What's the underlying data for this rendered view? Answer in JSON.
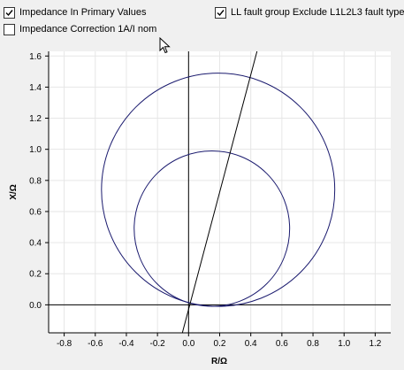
{
  "options": {
    "primary_values": {
      "label": "Impedance In Primary Values",
      "checked": true
    },
    "ll_fault_group": {
      "label": "LL fault group Exclude L1L2L3 fault type",
      "checked": true
    },
    "impedance_correction": {
      "label": "Impedance Correction 1A/I nom",
      "checked": false
    }
  },
  "icons": {
    "cursor": "mouse-pointer-icon"
  },
  "colors": {
    "curve": "#1a1a6e",
    "line": "#000000",
    "grid": "#e6e6e6",
    "plot_bg": "#ffffff",
    "window_bg": "#f0f0f0"
  },
  "chart_data": {
    "type": "line",
    "xlabel": "R/Ω",
    "ylabel": "X/Ω",
    "xlim": [
      -0.9,
      1.3
    ],
    "ylim": [
      -0.18,
      1.63
    ],
    "x_ticks": [
      -0.8,
      -0.6,
      -0.4,
      -0.2,
      0.0,
      0.2,
      0.4,
      0.6,
      0.8,
      1.0,
      1.2
    ],
    "y_ticks": [
      0.0,
      0.2,
      0.4,
      0.6,
      0.8,
      1.0,
      1.2,
      1.4,
      1.6
    ],
    "x_tick_labels": [
      "-0.8",
      "-0.6",
      "-0.4",
      "-0.2",
      "0.0",
      "0.2",
      "0.4",
      "0.6",
      "0.8",
      "1.0",
      "1.2"
    ],
    "y_tick_labels": [
      "0.0",
      "0.2",
      "0.4",
      "0.6",
      "0.8",
      "1.0",
      "1.2",
      "1.4",
      "1.6"
    ],
    "grid": true,
    "series": [
      {
        "shape": "circle",
        "center": [
          0.19,
          0.74
        ],
        "radius": 0.75
      },
      {
        "shape": "circle",
        "center": [
          0.15,
          0.49
        ],
        "radius": 0.5
      },
      {
        "shape": "line",
        "x": [
          -0.04,
          0.44
        ],
        "y": [
          -0.18,
          1.63
        ]
      }
    ]
  }
}
